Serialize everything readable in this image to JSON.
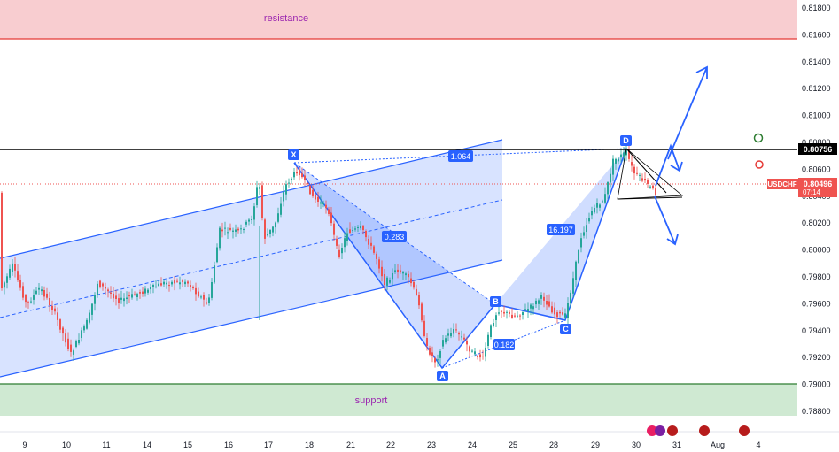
{
  "chart_data": {
    "type": "candlestick",
    "symbol": "USDCHF",
    "y_range": [
      0.7875,
      0.8195
    ],
    "y_ticks": [
      "0.81800",
      "0.81600",
      "0.81400",
      "0.81200",
      "0.81000",
      "0.80800",
      "0.80600",
      "0.80400",
      "0.80200",
      "0.80000",
      "0.79800",
      "0.79600",
      "0.79400",
      "0.79200",
      "0.79000",
      "0.78800"
    ],
    "x_ticks": [
      "9",
      "10",
      "11",
      "14",
      "15",
      "16",
      "17",
      "18",
      "21",
      "22",
      "23",
      "24",
      "25",
      "28",
      "29",
      "30",
      "31",
      "Aug",
      "4"
    ],
    "current_price": "0.80496",
    "countdown": "07:14",
    "level_price": "0.80756",
    "zones": {
      "resistance": {
        "label": "resistance",
        "from": 0.8158,
        "to": 0.8195
      },
      "support": {
        "label": "support",
        "from": 0.7878,
        "to": 0.7901
      }
    },
    "harmonic_points": [
      {
        "label": "X",
        "x": "17",
        "y": 0.8066
      },
      {
        "label": "A",
        "x": "23",
        "y": 0.7912
      },
      {
        "label": "B",
        "x": "24",
        "y": 0.7958
      },
      {
        "label": "C",
        "x": "28",
        "y": 0.7948
      },
      {
        "label": "D",
        "x": "29",
        "y": 0.8076
      }
    ],
    "ratios": [
      "1.064",
      "0.283",
      "16.197",
      "0.182"
    ],
    "colors": {
      "up": "#26a69a",
      "down": "#ef5350",
      "pattern": "#2962ff",
      "resistance_fill": "#f8cdd0",
      "resistance_line": "#e53935",
      "support_fill": "#cfe9d2",
      "support_line": "#2e7d32"
    }
  }
}
